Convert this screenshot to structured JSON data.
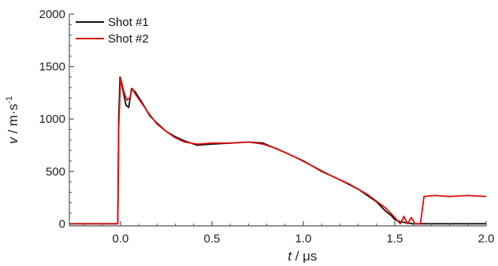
{
  "chart_data": {
    "type": "line",
    "xlabel": {
      "var": "t",
      "unit": " / μs"
    },
    "ylabel": {
      "var": "v",
      "unit": " / m·s",
      "sup": "-1"
    },
    "xlim": [
      -0.28,
      2.0
    ],
    "ylim": [
      -20,
      2000
    ],
    "xticks": [
      0.0,
      0.5,
      1.0,
      1.5,
      2.0
    ],
    "xtick_labels": [
      "0.0",
      "0.5",
      "1.0",
      "1.5",
      "2.0"
    ],
    "yticks": [
      0,
      500,
      1000,
      1500,
      2000
    ],
    "ytick_labels": [
      "0",
      "500",
      "1000",
      "1500",
      "2000"
    ],
    "grid": false,
    "legend": "top-left",
    "series": [
      {
        "name": "Shot #1",
        "color": "#111111",
        "points": [
          [
            -0.28,
            0
          ],
          [
            -0.015,
            0
          ],
          [
            -0.01,
            1000
          ],
          [
            -0.003,
            1400
          ],
          [
            0.01,
            1300
          ],
          [
            0.03,
            1130
          ],
          [
            0.045,
            1110
          ],
          [
            0.06,
            1290
          ],
          [
            0.08,
            1260
          ],
          [
            0.12,
            1150
          ],
          [
            0.16,
            1030
          ],
          [
            0.2,
            960
          ],
          [
            0.25,
            880
          ],
          [
            0.3,
            830
          ],
          [
            0.35,
            790
          ],
          [
            0.42,
            750
          ],
          [
            0.5,
            760
          ],
          [
            0.6,
            770
          ],
          [
            0.7,
            780
          ],
          [
            0.78,
            770
          ],
          [
            0.82,
            740
          ],
          [
            0.9,
            680
          ],
          [
            1.0,
            600
          ],
          [
            1.1,
            500
          ],
          [
            1.2,
            420
          ],
          [
            1.3,
            330
          ],
          [
            1.4,
            210
          ],
          [
            1.45,
            120
          ],
          [
            1.48,
            80
          ],
          [
            1.5,
            40
          ],
          [
            1.53,
            20
          ],
          [
            1.56,
            10
          ],
          [
            1.6,
            0
          ],
          [
            2.0,
            0
          ]
        ]
      },
      {
        "name": "Shot #2",
        "color": "#dd1111",
        "points": [
          [
            -0.28,
            0
          ],
          [
            -0.015,
            0
          ],
          [
            -0.01,
            900
          ],
          [
            0.0,
            1390
          ],
          [
            0.01,
            1320
          ],
          [
            0.02,
            1250
          ],
          [
            0.035,
            1180
          ],
          [
            0.05,
            1200
          ],
          [
            0.065,
            1290
          ],
          [
            0.08,
            1240
          ],
          [
            0.12,
            1140
          ],
          [
            0.16,
            1040
          ],
          [
            0.2,
            950
          ],
          [
            0.25,
            880
          ],
          [
            0.3,
            820
          ],
          [
            0.35,
            780
          ],
          [
            0.42,
            760
          ],
          [
            0.5,
            770
          ],
          [
            0.6,
            770
          ],
          [
            0.7,
            780
          ],
          [
            0.78,
            760
          ],
          [
            0.85,
            720
          ],
          [
            0.95,
            640
          ],
          [
            1.05,
            550
          ],
          [
            1.15,
            460
          ],
          [
            1.25,
            380
          ],
          [
            1.35,
            280
          ],
          [
            1.45,
            150
          ],
          [
            1.5,
            60
          ],
          [
            1.53,
            0
          ],
          [
            1.55,
            70
          ],
          [
            1.57,
            0
          ],
          [
            1.59,
            60
          ],
          [
            1.61,
            0
          ],
          [
            1.64,
            0
          ],
          [
            1.66,
            260
          ],
          [
            1.72,
            270
          ],
          [
            1.8,
            260
          ],
          [
            1.9,
            270
          ],
          [
            2.0,
            260
          ]
        ]
      }
    ]
  }
}
